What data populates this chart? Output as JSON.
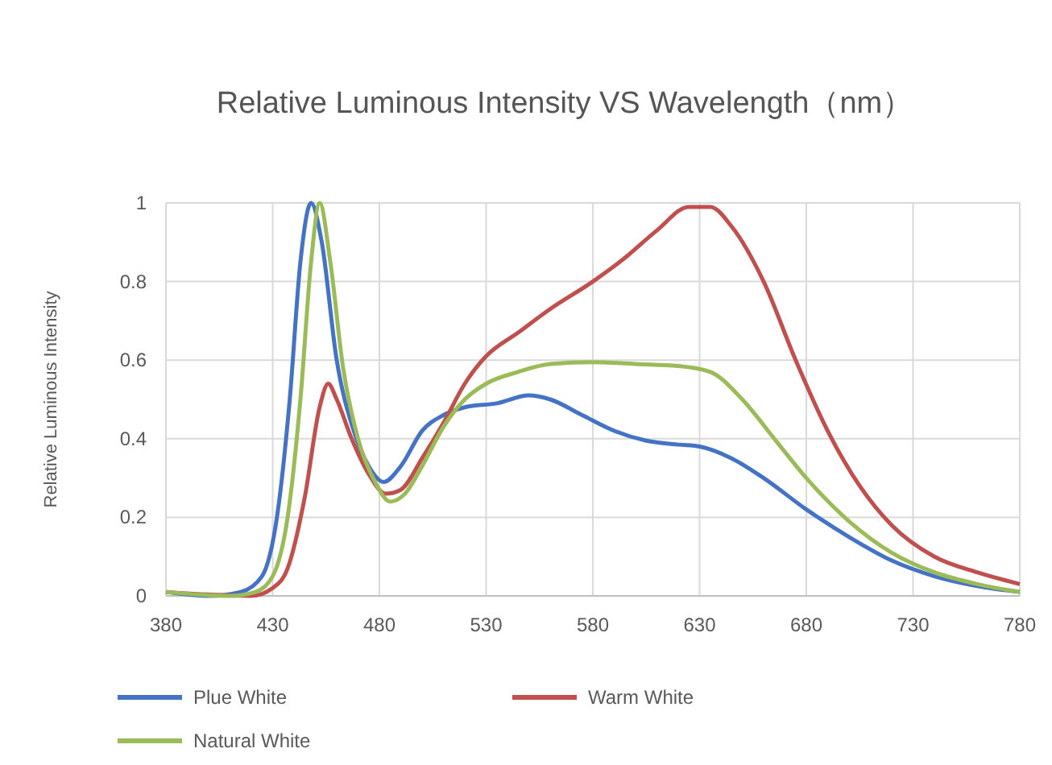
{
  "chart_data": {
    "type": "line",
    "title": "Relative Luminous Intensity VS Wavelength（nm）",
    "ylabel": "Relative Luminous Intensity",
    "xlim": [
      380,
      780
    ],
    "xticks": [
      380,
      430,
      480,
      530,
      580,
      630,
      680,
      730,
      780
    ],
    "ylim": [
      0,
      1
    ],
    "yticks": [
      0,
      0.2,
      0.4,
      0.6,
      0.8,
      1
    ],
    "grid": true,
    "legend": "bottom",
    "line_style": "solid",
    "marker": "none",
    "series": [
      {
        "name": "Plue White",
        "color": "#4472c4",
        "x": [
          380,
          400,
          415,
          425,
          432,
          438,
          443,
          448,
          453,
          460,
          468,
          475,
          482,
          490,
          500,
          510,
          520,
          535,
          550,
          560,
          575,
          590,
          605,
          620,
          630,
          645,
          660,
          680,
          700,
          720,
          740,
          760,
          780
        ],
        "values": [
          0.01,
          0,
          0.01,
          0.05,
          0.2,
          0.5,
          0.85,
          1,
          0.9,
          0.6,
          0.42,
          0.33,
          0.29,
          0.33,
          0.42,
          0.46,
          0.48,
          0.49,
          0.51,
          0.5,
          0.46,
          0.42,
          0.395,
          0.385,
          0.38,
          0.35,
          0.3,
          0.22,
          0.15,
          0.09,
          0.05,
          0.025,
          0.01
        ]
      },
      {
        "name": "Warm White",
        "color": "#c0504d",
        "x": [
          380,
          420,
          430,
          437,
          445,
          452,
          456,
          460,
          467,
          475,
          483,
          490,
          500,
          510,
          520,
          530,
          545,
          560,
          580,
          595,
          610,
          625,
          635,
          645,
          660,
          675,
          690,
          705,
          720,
          740,
          760,
          780
        ],
        "values": [
          0.01,
          0,
          0.02,
          0.07,
          0.25,
          0.48,
          0.54,
          0.5,
          0.4,
          0.31,
          0.26,
          0.27,
          0.35,
          0.44,
          0.54,
          0.61,
          0.67,
          0.73,
          0.8,
          0.86,
          0.93,
          0.99,
          0.99,
          0.94,
          0.8,
          0.6,
          0.42,
          0.28,
          0.18,
          0.1,
          0.06,
          0.03
        ]
      },
      {
        "name": "Natural White",
        "color": "#9bbb59",
        "x": [
          380,
          410,
          422,
          430,
          437,
          443,
          448,
          452,
          457,
          463,
          470,
          478,
          485,
          492,
          500,
          510,
          520,
          530,
          545,
          560,
          580,
          600,
          620,
          635,
          650,
          665,
          680,
          700,
          720,
          740,
          760,
          780
        ],
        "values": [
          0.01,
          0,
          0.01,
          0.05,
          0.2,
          0.5,
          0.85,
          1,
          0.85,
          0.58,
          0.4,
          0.29,
          0.24,
          0.26,
          0.33,
          0.43,
          0.5,
          0.54,
          0.57,
          0.59,
          0.595,
          0.59,
          0.585,
          0.57,
          0.5,
          0.4,
          0.3,
          0.19,
          0.11,
          0.06,
          0.03,
          0.01
        ]
      }
    ]
  }
}
